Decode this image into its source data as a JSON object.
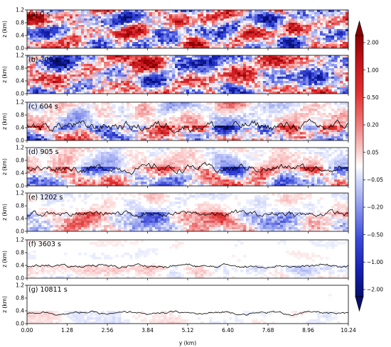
{
  "chart_data": {
    "type": "heatmap",
    "xlabel": "y (km)",
    "ylabel": "z (km)",
    "x_ticks": [
      "0.00",
      "1.28",
      "2.56",
      "3.84",
      "5.12",
      "6.40",
      "7.68",
      "8.96",
      "10.24"
    ],
    "y_ticks": [
      "0.0",
      "0.4",
      "0.8",
      "1.2"
    ],
    "xlim": [
      0,
      10.24
    ],
    "ylim": [
      0,
      1.2
    ],
    "colorbar": {
      "ticks": [
        "2.00",
        "1.00",
        "0.50",
        "0.20",
        "0.05",
        "−0.05",
        "−0.20",
        "−0.50",
        "−1.00",
        "−2.00"
      ],
      "extend": "both",
      "colors": {
        "max": "#0b3d9c",
        "min": "#08106e",
        "neutral": "#ffffff"
      }
    },
    "panels": [
      {
        "label": "(a) 0 s",
        "time_s": 0,
        "amplitude": 1.0,
        "contour_height_km": null
      },
      {
        "label": "(b) 300 s",
        "time_s": 300,
        "amplitude": 1.0,
        "contour_height_km": null
      },
      {
        "label": "(c) 604 s",
        "time_s": 604,
        "amplitude": 0.85,
        "contour_height_km": 0.45
      },
      {
        "label": "(d) 905 s",
        "time_s": 905,
        "amplitude": 0.65,
        "contour_height_km": 0.55
      },
      {
        "label": "(e) 1202 s",
        "time_s": 1202,
        "amplitude": 0.45,
        "contour_height_km": 0.55
      },
      {
        "label": "(f) 3603 s",
        "time_s": 3603,
        "amplitude": 0.18,
        "contour_height_km": 0.38
      },
      {
        "label": "(g) 10811 s",
        "time_s": 10811,
        "amplitude": 0.1,
        "contour_height_km": 0.33
      }
    ]
  }
}
